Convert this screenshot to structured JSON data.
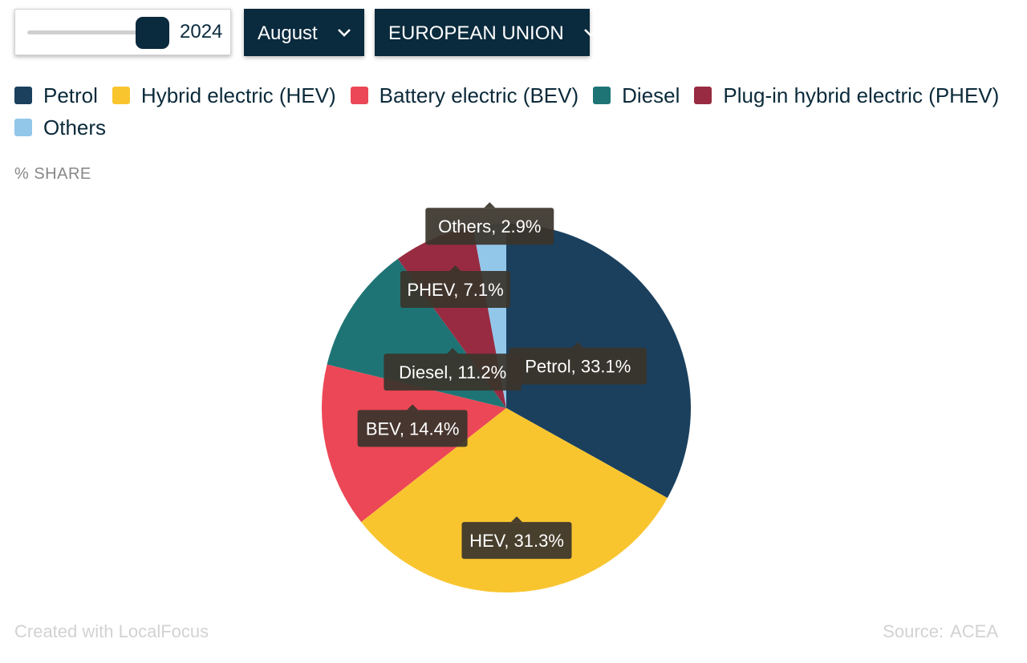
{
  "controls": {
    "year": "2024",
    "year_slider": {
      "value": 2024
    },
    "month": "August",
    "region": "EUROPEAN UNION"
  },
  "chart_data": {
    "type": "pie",
    "ylabel": "% SHARE",
    "unit": "%",
    "slices": [
      {
        "name": "Petrol",
        "short": "Petrol",
        "value": 33.1,
        "color": "#1b405e"
      },
      {
        "name": "Hybrid electric (HEV)",
        "short": "HEV",
        "value": 31.3,
        "color": "#f9c52f"
      },
      {
        "name": "Battery electric (BEV)",
        "short": "BEV",
        "value": 14.4,
        "color": "#ec4756"
      },
      {
        "name": "Diesel",
        "short": "Diesel",
        "value": 11.2,
        "color": "#1e7475"
      },
      {
        "name": "Plug-in hybrid electric (PHEV)",
        "short": "PHEV",
        "value": 7.1,
        "color": "#982b41"
      },
      {
        "name": "Others",
        "short": "Others",
        "value": 2.9,
        "color": "#92c7ea"
      }
    ],
    "legend_position": "top"
  },
  "footer": {
    "credit": "Created with LocalFocus",
    "source_label": "Source:",
    "source_value": "ACEA"
  }
}
